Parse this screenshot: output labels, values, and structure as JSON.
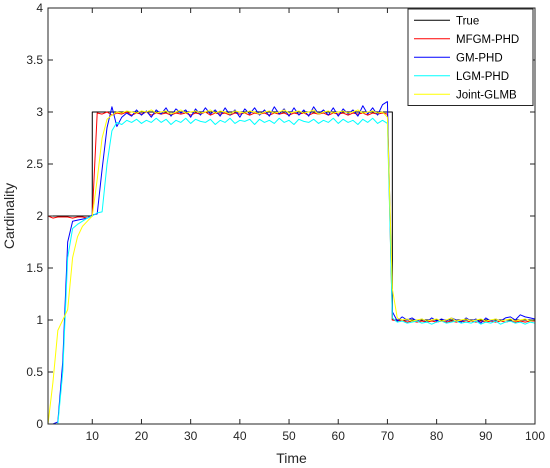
{
  "chart_data": {
    "type": "line",
    "xlabel": "Time",
    "ylabel": "Cardinality",
    "xlim": [
      1,
      100
    ],
    "ylim": [
      0,
      4
    ],
    "xticks": [
      10,
      20,
      30,
      40,
      50,
      60,
      70,
      80,
      90,
      100
    ],
    "yticks": [
      0,
      0.5,
      1,
      1.5,
      2,
      2.5,
      3,
      3.5,
      4
    ],
    "ytick_labels": [
      "0",
      "0.5",
      "1",
      "1.5",
      "2",
      "2.5",
      "3",
      "3.5",
      "4"
    ],
    "grid": false,
    "legend_position": "top-right",
    "series": [
      {
        "name": "True",
        "color": "#000000",
        "step": true,
        "points": [
          [
            1,
            2
          ],
          [
            10,
            2
          ],
          [
            10,
            3
          ],
          [
            71,
            3
          ],
          [
            71,
            1
          ],
          [
            100,
            1
          ]
        ]
      },
      {
        "name": "MFGM-PHD",
        "color": "#ff0000",
        "x": [
          1,
          2,
          3,
          4,
          5,
          6,
          7,
          8,
          9,
          10,
          11,
          12,
          13,
          14,
          15,
          16,
          17,
          18,
          19,
          20,
          21,
          22,
          23,
          24,
          25,
          26,
          27,
          28,
          29,
          30,
          31,
          32,
          33,
          34,
          35,
          36,
          37,
          38,
          39,
          40,
          41,
          42,
          43,
          44,
          45,
          46,
          47,
          48,
          49,
          50,
          51,
          52,
          53,
          54,
          55,
          56,
          57,
          58,
          59,
          60,
          61,
          62,
          63,
          64,
          65,
          66,
          67,
          68,
          69,
          70,
          71,
          72,
          73,
          74,
          75,
          76,
          77,
          78,
          79,
          80,
          81,
          82,
          83,
          84,
          85,
          86,
          87,
          88,
          89,
          90,
          91,
          92,
          93,
          94,
          95,
          96,
          97,
          98,
          99,
          100
        ],
        "values": [
          2.0,
          1.98,
          1.99,
          1.99,
          1.99,
          1.98,
          1.99,
          1.99,
          1.98,
          2.0,
          2.99,
          2.98,
          3.0,
          2.97,
          2.99,
          2.98,
          3.0,
          2.97,
          2.99,
          2.98,
          3.0,
          2.97,
          2.99,
          2.98,
          2.99,
          2.97,
          2.99,
          2.98,
          2.99,
          2.97,
          2.99,
          2.98,
          3.0,
          2.97,
          2.99,
          2.98,
          2.99,
          2.97,
          2.99,
          2.98,
          2.99,
          2.97,
          2.99,
          2.98,
          2.99,
          2.97,
          2.99,
          2.98,
          2.99,
          2.97,
          2.99,
          2.98,
          2.99,
          2.97,
          2.99,
          2.98,
          2.99,
          2.97,
          2.99,
          2.98,
          2.99,
          2.97,
          2.99,
          2.98,
          2.99,
          2.97,
          2.99,
          2.98,
          2.99,
          2.98,
          1.0,
          0.99,
          1.0,
          0.98,
          0.99,
          0.98,
          0.99,
          0.98,
          0.99,
          0.98,
          0.99,
          0.98,
          0.99,
          0.98,
          0.99,
          0.98,
          0.99,
          0.98,
          0.99,
          0.98,
          0.99,
          0.98,
          0.99,
          0.98,
          0.99,
          0.98,
          0.99,
          0.98,
          0.99,
          0.99
        ]
      },
      {
        "name": "GM-PHD",
        "color": "#0000ff",
        "x": [
          1,
          2,
          3,
          4,
          5,
          6,
          7,
          8,
          9,
          10,
          11,
          12,
          13,
          14,
          15,
          16,
          17,
          18,
          19,
          20,
          21,
          22,
          23,
          24,
          25,
          26,
          27,
          28,
          29,
          30,
          31,
          32,
          33,
          34,
          35,
          36,
          37,
          38,
          39,
          40,
          41,
          42,
          43,
          44,
          45,
          46,
          47,
          48,
          49,
          50,
          51,
          52,
          53,
          54,
          55,
          56,
          57,
          58,
          59,
          60,
          61,
          62,
          63,
          64,
          65,
          66,
          67,
          68,
          69,
          70,
          71,
          72,
          73,
          74,
          75,
          76,
          77,
          78,
          79,
          80,
          81,
          82,
          83,
          84,
          85,
          86,
          87,
          88,
          89,
          90,
          91,
          92,
          93,
          94,
          95,
          96,
          97,
          98,
          99,
          100
        ],
        "values": [
          0,
          0,
          0.02,
          0.6,
          1.75,
          1.95,
          1.96,
          1.97,
          1.98,
          2.01,
          2.02,
          2.45,
          2.85,
          3.05,
          2.86,
          2.95,
          2.99,
          2.96,
          3.02,
          2.97,
          3.01,
          2.95,
          3.02,
          2.98,
          3.04,
          2.96,
          3.03,
          2.99,
          3.02,
          2.95,
          3.03,
          2.97,
          3.04,
          2.98,
          3.02,
          2.96,
          3.04,
          2.97,
          3.02,
          2.95,
          3.03,
          2.98,
          3.04,
          2.97,
          3.02,
          2.96,
          3.05,
          2.98,
          3.03,
          2.96,
          3.04,
          2.97,
          3.02,
          2.96,
          3.05,
          2.98,
          3.02,
          2.97,
          3.04,
          2.96,
          3.03,
          2.98,
          3.02,
          2.96,
          3.06,
          2.98,
          3.04,
          2.97,
          3.07,
          3.1,
          1.08,
          0.99,
          1.03,
          1.0,
          1.02,
          0.99,
          1.01,
          0.98,
          1.02,
          0.99,
          1.01,
          0.99,
          1.02,
          1.0,
          0.98,
          1.02,
          0.99,
          1.01,
          0.97,
          1.02,
          0.99,
          1.01,
          0.99,
          1.02,
          1.03,
          1.0,
          1.05,
          1.03,
          1.02,
          1.01
        ]
      },
      {
        "name": "LGM-PHD",
        "color": "#00ffff",
        "x": [
          1,
          2,
          3,
          4,
          5,
          6,
          7,
          8,
          9,
          10,
          11,
          12,
          13,
          14,
          15,
          16,
          17,
          18,
          19,
          20,
          21,
          22,
          23,
          24,
          25,
          26,
          27,
          28,
          29,
          30,
          31,
          32,
          33,
          34,
          35,
          36,
          37,
          38,
          39,
          40,
          41,
          42,
          43,
          44,
          45,
          46,
          47,
          48,
          49,
          50,
          51,
          52,
          53,
          54,
          55,
          56,
          57,
          58,
          59,
          60,
          61,
          62,
          63,
          64,
          65,
          66,
          67,
          68,
          69,
          70,
          71,
          72,
          73,
          74,
          75,
          76,
          77,
          78,
          79,
          80,
          81,
          82,
          83,
          84,
          85,
          86,
          87,
          88,
          89,
          90,
          91,
          92,
          93,
          94,
          95,
          96,
          97,
          98,
          99,
          100
        ],
        "values": [
          0,
          0,
          0,
          0.5,
          1.6,
          1.88,
          1.92,
          1.95,
          1.98,
          2.0,
          2.03,
          2.04,
          2.5,
          2.82,
          2.9,
          2.88,
          2.92,
          2.9,
          2.93,
          2.89,
          2.92,
          2.9,
          2.94,
          2.9,
          2.93,
          2.88,
          2.92,
          2.9,
          2.94,
          2.89,
          2.93,
          2.91,
          2.9,
          2.93,
          2.88,
          2.92,
          2.9,
          2.94,
          2.89,
          2.92,
          2.91,
          2.93,
          2.88,
          2.93,
          2.9,
          2.92,
          2.89,
          2.94,
          2.9,
          2.92,
          2.88,
          2.93,
          2.91,
          2.9,
          2.93,
          2.89,
          2.92,
          2.9,
          2.94,
          2.89,
          2.93,
          2.9,
          2.92,
          2.88,
          2.93,
          2.9,
          2.94,
          2.89,
          2.92,
          2.89,
          1.02,
          0.98,
          0.99,
          0.97,
          0.98,
          0.99,
          0.97,
          0.98,
          0.96,
          0.98,
          0.99,
          0.97,
          0.98,
          0.99,
          0.97,
          0.98,
          0.97,
          0.99,
          0.96,
          0.98,
          0.97,
          0.99,
          0.96,
          0.98,
          0.99,
          0.97,
          0.98,
          0.96,
          0.98,
          0.97
        ]
      },
      {
        "name": "Joint-GLMB",
        "color": "#ffff00",
        "x": [
          1,
          2,
          3,
          4,
          5,
          6,
          7,
          8,
          9,
          10,
          11,
          12,
          13,
          14,
          15,
          16,
          17,
          18,
          19,
          20,
          21,
          22,
          23,
          24,
          25,
          26,
          27,
          28,
          29,
          30,
          31,
          32,
          33,
          34,
          35,
          36,
          37,
          38,
          39,
          40,
          41,
          42,
          43,
          44,
          45,
          46,
          47,
          48,
          49,
          50,
          51,
          52,
          53,
          54,
          55,
          56,
          57,
          58,
          59,
          60,
          61,
          62,
          63,
          64,
          65,
          66,
          67,
          68,
          69,
          70,
          71,
          72,
          73,
          74,
          75,
          76,
          77,
          78,
          79,
          80,
          81,
          82,
          83,
          84,
          85,
          86,
          87,
          88,
          89,
          90,
          91,
          92,
          93,
          94,
          95,
          96,
          97,
          98,
          99,
          100
        ],
        "values": [
          0,
          0.4,
          0.9,
          1.0,
          1.1,
          1.6,
          1.8,
          1.9,
          1.95,
          2.0,
          2.35,
          2.75,
          2.93,
          2.97,
          3.0,
          2.99,
          3.01,
          3.0,
          2.99,
          3.01,
          3.0,
          3.02,
          2.99,
          3.0,
          3.01,
          2.98,
          3.0,
          3.02,
          2.99,
          3.0,
          3.01,
          2.99,
          3.0,
          3.02,
          2.99,
          3.01,
          3.0,
          2.98,
          3.01,
          3.0,
          2.99,
          3.01,
          3.0,
          2.98,
          3.0,
          3.01,
          2.99,
          3.0,
          3.02,
          2.99,
          3.0,
          3.01,
          2.99,
          3.0,
          3.02,
          2.98,
          3.0,
          3.01,
          2.99,
          3.0,
          3.01,
          2.99,
          3.0,
          3.02,
          2.99,
          3.0,
          3.01,
          2.99,
          3.0,
          2.95,
          1.3,
          1.02,
          1.0,
          1.01,
          0.99,
          1.0,
          1.01,
          0.99,
          1.0,
          1.01,
          0.99,
          1.0,
          1.02,
          0.99,
          1.0,
          1.01,
          0.99,
          1.0,
          1.01,
          0.99,
          1.0,
          1.01,
          0.99,
          1.0,
          1.01,
          0.99,
          1.0,
          1.01,
          0.99,
          1.0
        ]
      }
    ]
  }
}
